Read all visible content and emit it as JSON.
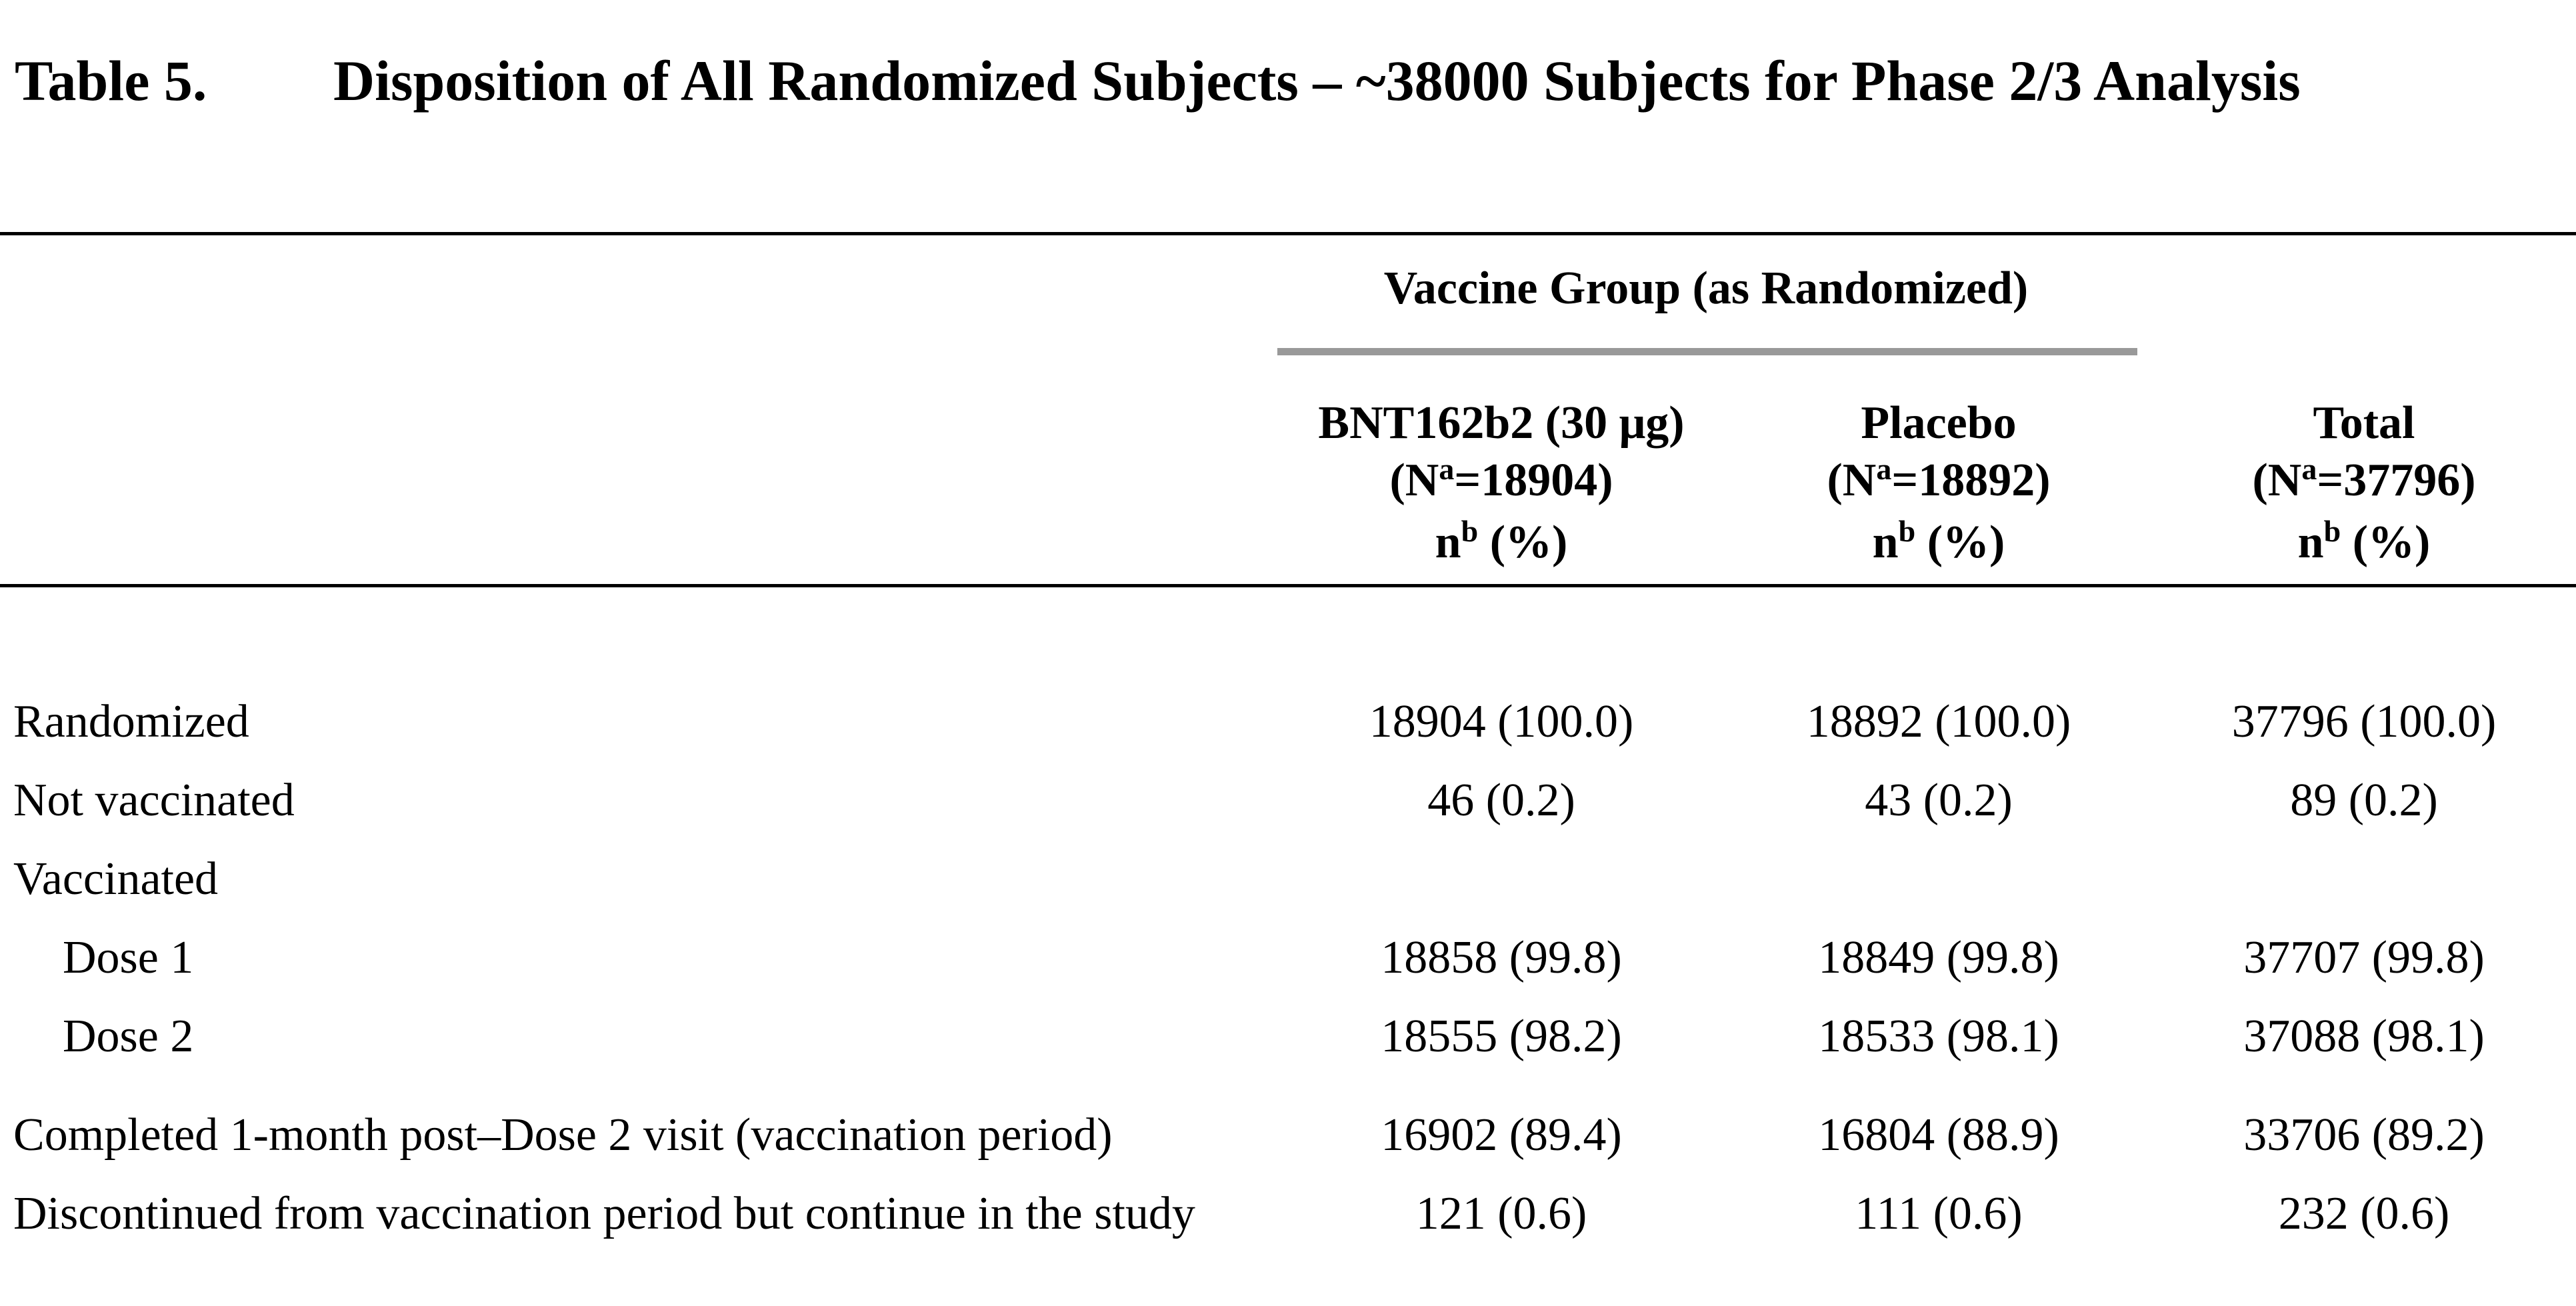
{
  "caption": {
    "label": "Table 5.",
    "title": "Disposition of All Randomized Subjects – ~38000 Subjects for Phase 2/3 Analysis"
  },
  "header": {
    "group": "Vaccine Group (as Randomized)",
    "columns": [
      {
        "name": "BNT162b2 (30 μg)",
        "n_total": "18904"
      },
      {
        "name": "Placebo",
        "n_total": "18892"
      },
      {
        "name": "Total",
        "n_total": "37796"
      }
    ],
    "n_letter": "N",
    "n_sup": "a",
    "count_letter": "n",
    "count_sup": "b",
    "count_unit": "(%)"
  },
  "rows": [
    {
      "label": "Randomized",
      "values": [
        "18904 (100.0)",
        "18892 (100.0)",
        "37796 (100.0)"
      ]
    },
    {
      "label": "Not vaccinated",
      "values": [
        "46 (0.2)",
        "43 (0.2)",
        "89 (0.2)"
      ]
    },
    {
      "label": "Vaccinated",
      "values": []
    },
    {
      "label": "Dose 1",
      "values": [
        "18858 (99.8)",
        "18849 (99.8)",
        "37707 (99.8)"
      ]
    },
    {
      "label": "Dose 2",
      "values": [
        "18555 (98.2)",
        "18533 (98.1)",
        "37088 (98.1)"
      ]
    },
    {
      "label": "Completed 1-month post–Dose 2 visit (vaccination period)",
      "values": [
        "16902 (89.4)",
        "16804 (88.9)",
        "33706 (89.2)"
      ]
    },
    {
      "label": "Discontinued from vaccination period but continue in the study",
      "values": [
        "121 (0.6)",
        "111 (0.6)",
        "232 (0.6)"
      ]
    }
  ]
}
